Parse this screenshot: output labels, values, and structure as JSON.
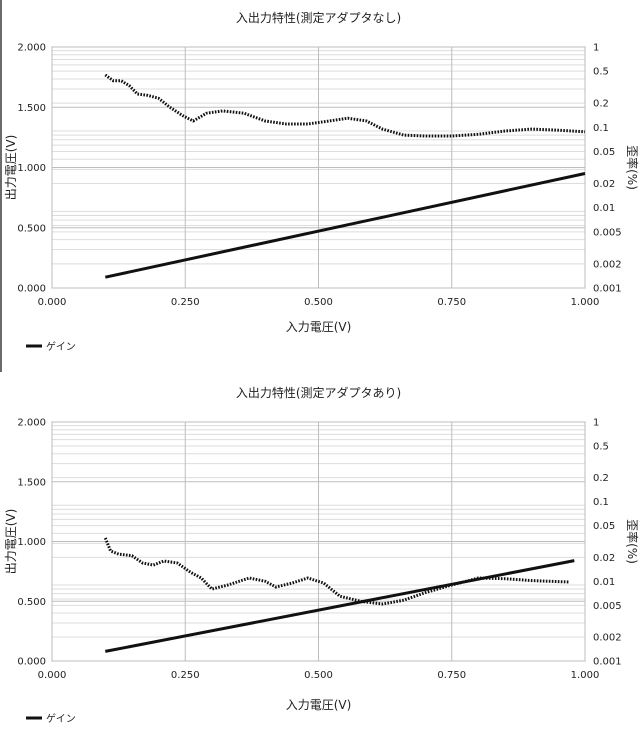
{
  "chart_data": [
    {
      "type": "line",
      "title": "入出力特性(測定アダプタなし)",
      "xlabel": "入力電圧(V)",
      "ylabel": "出力電圧(V)",
      "y2label": "歪率(%)",
      "xlim": [
        0,
        1
      ],
      "ylim": [
        0,
        2
      ],
      "y2lim": [
        0.001,
        1
      ],
      "y2scale": "log",
      "grid": true,
      "x_ticks": [
        "0.000",
        "0.250",
        "0.500",
        "0.750",
        "1.000"
      ],
      "y_ticks": [
        "0.000",
        "0.500",
        "1.000",
        "1.500",
        "2.000"
      ],
      "y2_ticks": [
        "1",
        "0.5",
        "0.2",
        "0.1",
        "0.05",
        "0.02",
        "0.01",
        "0.005",
        "0.002",
        "0.001"
      ],
      "legend": {
        "position": "bottom-left",
        "entries": [
          "ゲイン"
        ]
      },
      "series": [
        {
          "name": "ゲイン",
          "axis": "left",
          "style": "solid",
          "x": [
            0.1,
            1.0
          ],
          "values": [
            0.09,
            0.95
          ]
        },
        {
          "axis": "right",
          "style": "dotted",
          "x": [
            0.1,
            0.115,
            0.13,
            0.145,
            0.16,
            0.18,
            0.2,
            0.22,
            0.245,
            0.265,
            0.29,
            0.32,
            0.36,
            0.4,
            0.44,
            0.48,
            0.52,
            0.555,
            0.59,
            0.62,
            0.66,
            0.7,
            0.75,
            0.8,
            0.85,
            0.9,
            0.95,
            1.0
          ],
          "values": [
            0.45,
            0.38,
            0.38,
            0.33,
            0.26,
            0.25,
            0.23,
            0.18,
            0.14,
            0.12,
            0.15,
            0.16,
            0.15,
            0.12,
            0.11,
            0.11,
            0.12,
            0.13,
            0.12,
            0.095,
            0.08,
            0.078,
            0.078,
            0.082,
            0.09,
            0.095,
            0.092,
            0.088
          ]
        }
      ]
    },
    {
      "type": "line",
      "title": "入出力特性(測定アダプタあり)",
      "xlabel": "入力電圧(V)",
      "ylabel": "出力電圧(V)",
      "y2label": "歪率(%)",
      "xlim": [
        0,
        1
      ],
      "ylim": [
        0,
        2
      ],
      "y2lim": [
        0.001,
        1
      ],
      "y2scale": "log",
      "grid": true,
      "x_ticks": [
        "0.000",
        "0.250",
        "0.500",
        "0.750",
        "1.000"
      ],
      "y_ticks": [
        "0.000",
        "0.500",
        "1.000",
        "1.500",
        "2.000"
      ],
      "y2_ticks": [
        "1",
        "0.5",
        "0.2",
        "0.1",
        "0.05",
        "0.02",
        "0.01",
        "0.005",
        "0.002",
        "0.001"
      ],
      "legend": {
        "position": "bottom-left",
        "entries": [
          "ゲイン"
        ]
      },
      "series": [
        {
          "name": "ゲイン",
          "axis": "left",
          "style": "solid",
          "x": [
            0.1,
            0.98
          ],
          "values": [
            0.08,
            0.84
          ]
        },
        {
          "axis": "right",
          "style": "dotted",
          "x": [
            0.1,
            0.11,
            0.125,
            0.15,
            0.17,
            0.19,
            0.21,
            0.235,
            0.26,
            0.28,
            0.3,
            0.33,
            0.37,
            0.4,
            0.42,
            0.45,
            0.48,
            0.51,
            0.54,
            0.58,
            0.62,
            0.66,
            0.7,
            0.75,
            0.8,
            0.85,
            0.9,
            0.97
          ],
          "values": [
            0.035,
            0.024,
            0.022,
            0.021,
            0.017,
            0.016,
            0.018,
            0.017,
            0.013,
            0.011,
            0.008,
            0.009,
            0.011,
            0.01,
            0.0085,
            0.0095,
            0.011,
            0.0095,
            0.0065,
            0.0056,
            0.0052,
            0.0058,
            0.0072,
            0.009,
            0.011,
            0.0108,
            0.0102,
            0.0098
          ]
        }
      ]
    }
  ]
}
